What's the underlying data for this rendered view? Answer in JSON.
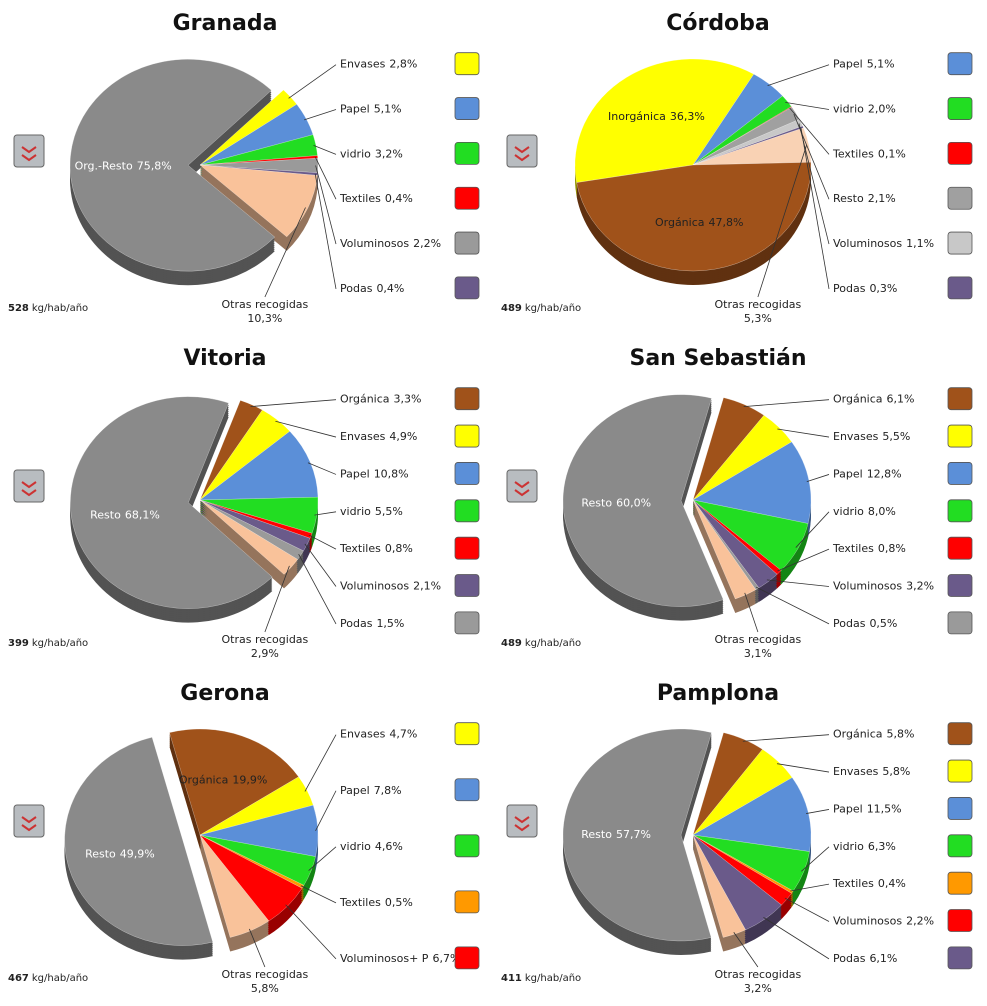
{
  "chart_data": [
    {
      "type": "pie",
      "title": "Granada",
      "categories": [
        "Org.-Resto",
        "Envases",
        "Papel",
        "vidrio",
        "Textiles",
        "Voluminosos",
        "Podas",
        "Otras recogidas"
      ],
      "values": [
        75.8,
        2.8,
        5.1,
        3.2,
        0.4,
        2.2,
        0.4,
        10.3
      ],
      "value_labels": [
        "75,8%",
        "2,8%",
        "5,1%",
        "3,2%",
        "0,4%",
        "2,2%",
        "0,4%",
        "10,3%"
      ],
      "colors": [
        "#8a8a8a",
        "#ffff00",
        "#5b8fd8",
        "#22dd22",
        "#ff0000",
        "#9a9a9a",
        "#6a5a8a",
        "#f9c29a"
      ],
      "total": 528,
      "total_unit": "kg/hab/año"
    },
    {
      "type": "pie",
      "title": "Córdoba",
      "categories": [
        "Inorgánica",
        "Papel",
        "vidrio",
        "Textiles",
        "Resto",
        "Voluminosos",
        "Podas",
        "Otras recogidas",
        "Orgánica"
      ],
      "values": [
        36.3,
        5.1,
        2.0,
        0.1,
        2.1,
        1.1,
        0.3,
        5.3,
        47.8
      ],
      "value_labels": [
        "36,3%",
        "5,1%",
        "2,0%",
        "0,1%",
        "2,1%",
        "1,1%",
        "0,3%",
        "5,3%",
        "47,8%"
      ],
      "colors": [
        "#ffff00",
        "#5b8fd8",
        "#22dd22",
        "#ff0000",
        "#a0a0a0",
        "#c8c8c8",
        "#6a5a8a",
        "#f9d2b4",
        "#a0521a"
      ],
      "total": 489,
      "total_unit": "kg/hab/año"
    },
    {
      "type": "pie",
      "title": "Vitoria",
      "categories": [
        "Resto",
        "Orgánica",
        "Envases",
        "Papel",
        "vidrio",
        "Textiles",
        "Voluminosos",
        "Podas",
        "Otras recogidas"
      ],
      "values": [
        68.1,
        3.3,
        4.9,
        10.8,
        5.5,
        0.8,
        2.1,
        1.5,
        2.9
      ],
      "value_labels": [
        "68,1%",
        "3,3%",
        "4,9%",
        "10,8%",
        "5,5%",
        "0,8%",
        "2,1%",
        "1,5%",
        "2,9%"
      ],
      "colors": [
        "#8a8a8a",
        "#a0521a",
        "#ffff00",
        "#5b8fd8",
        "#22dd22",
        "#ff0000",
        "#6a5a8a",
        "#9a9a9a",
        "#f9c29a"
      ],
      "total": 399,
      "total_unit": "kg/hab/año"
    },
    {
      "type": "pie",
      "title": "San Sebastián",
      "categories": [
        "Resto",
        "Orgánica",
        "Envases",
        "Papel",
        "vidrio",
        "Textiles",
        "Voluminosos",
        "Podas",
        "Otras recogidas"
      ],
      "values": [
        60.0,
        6.1,
        5.5,
        12.8,
        8.0,
        0.8,
        3.2,
        0.5,
        3.1
      ],
      "value_labels": [
        "60,0%",
        "6,1%",
        "5,5%",
        "12,8%",
        "8,0%",
        "0,8%",
        "3,2%",
        "0,5%",
        "3,1%"
      ],
      "colors": [
        "#8a8a8a",
        "#a0521a",
        "#ffff00",
        "#5b8fd8",
        "#22dd22",
        "#ff0000",
        "#6a5a8a",
        "#9a9a9a",
        "#f9c29a"
      ],
      "total": 489,
      "total_unit": "kg/hab/año"
    },
    {
      "type": "pie",
      "title": "Gerona",
      "categories": [
        "Resto",
        "Orgánica",
        "Envases",
        "Papel",
        "vidrio",
        "Textiles",
        "Voluminosos+ P",
        "Otras recogidas"
      ],
      "values": [
        49.9,
        19.9,
        4.7,
        7.8,
        4.6,
        0.5,
        6.7,
        5.8
      ],
      "value_labels": [
        "49,9%",
        "19,9%",
        "4,7%",
        "7,8%",
        "4,6%",
        "0,5%",
        "6,7%",
        "5,8%"
      ],
      "colors": [
        "#8a8a8a",
        "#a0521a",
        "#ffff00",
        "#5b8fd8",
        "#22dd22",
        "#ff9900",
        "#ff0000",
        "#f9c29a"
      ],
      "total": 467,
      "total_unit": "kg/hab/año"
    },
    {
      "type": "pie",
      "title": "Pamplona",
      "categories": [
        "Resto",
        "Orgánica",
        "Envases",
        "Papel",
        "vidrio",
        "Textiles",
        "Voluminosos",
        "Podas",
        "Otras recogidas"
      ],
      "values": [
        57.7,
        5.8,
        5.8,
        11.5,
        6.3,
        0.4,
        2.2,
        6.1,
        3.2
      ],
      "value_labels": [
        "57,7%",
        "5,8%",
        "5,8%",
        "11,5%",
        "6,3%",
        "0,4%",
        "2,2%",
        "6,1%",
        "3,2%"
      ],
      "colors": [
        "#8a8a8a",
        "#a0521a",
        "#ffff00",
        "#5b8fd8",
        "#22dd22",
        "#ff9900",
        "#ff0000",
        "#6a5a8a",
        "#f9c29a"
      ],
      "total": 411,
      "total_unit": "kg/hab/año"
    }
  ]
}
